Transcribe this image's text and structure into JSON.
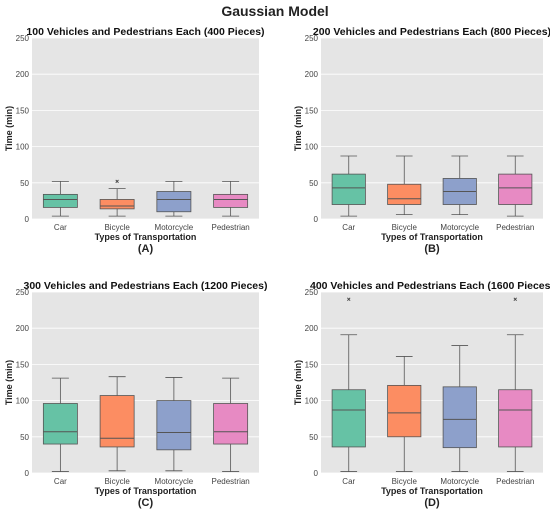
{
  "figure": {
    "title": "Gaussian Model"
  },
  "chart_data": [
    {
      "type": "box",
      "title": "100 Vehicles and Pedestrians Each (400 Pieces)",
      "xlabel": "Types of Transportation",
      "ylabel": "Time (min)",
      "sublabel": "(A)",
      "ylim": [
        0,
        250
      ],
      "yticks": [
        0,
        50,
        100,
        150,
        200,
        250
      ],
      "grid": true,
      "categories": [
        "Car",
        "Bicycle",
        "Motorcycle",
        "Pedestrian"
      ],
      "boxes": [
        {
          "whislo": 4,
          "q1": 16,
          "med": 27,
          "q3": 34,
          "whishi": 52,
          "fliers": []
        },
        {
          "whislo": 4,
          "q1": 14,
          "med": 18,
          "q3": 27,
          "whishi": 42,
          "fliers": [
            52
          ]
        },
        {
          "whislo": 4,
          "q1": 10,
          "med": 27,
          "q3": 38,
          "whishi": 52,
          "fliers": []
        },
        {
          "whislo": 4,
          "q1": 16,
          "med": 27,
          "q3": 34,
          "whishi": 52,
          "fliers": []
        }
      ]
    },
    {
      "type": "box",
      "title": "200 Vehicles and Pedestrians Each (800 Pieces)",
      "xlabel": "Types of Transportation",
      "ylabel": "Time (min)",
      "sublabel": "(B)",
      "ylim": [
        0,
        250
      ],
      "yticks": [
        0,
        50,
        100,
        150,
        200,
        250
      ],
      "grid": true,
      "categories": [
        "Car",
        "Bicycle",
        "Motorcycle",
        "Pedestrian"
      ],
      "boxes": [
        {
          "whislo": 4,
          "q1": 20,
          "med": 43,
          "q3": 62,
          "whishi": 87,
          "fliers": []
        },
        {
          "whislo": 6,
          "q1": 20,
          "med": 28,
          "q3": 48,
          "whishi": 87,
          "fliers": []
        },
        {
          "whislo": 6,
          "q1": 20,
          "med": 38,
          "q3": 56,
          "whishi": 87,
          "fliers": []
        },
        {
          "whislo": 4,
          "q1": 20,
          "med": 43,
          "q3": 62,
          "whishi": 87,
          "fliers": []
        }
      ]
    },
    {
      "type": "box",
      "title": "300 Vehicles and Pedestrians Each (1200 Pieces)",
      "xlabel": "Types of Transportation",
      "ylabel": "Time (min)",
      "sublabel": "(C)",
      "ylim": [
        0,
        250
      ],
      "yticks": [
        0,
        50,
        100,
        150,
        200,
        250
      ],
      "grid": true,
      "categories": [
        "Car",
        "Bicycle",
        "Motorcycle",
        "Pedestrian"
      ],
      "boxes": [
        {
          "whislo": 2,
          "q1": 40,
          "med": 57,
          "q3": 96,
          "whishi": 131,
          "fliers": []
        },
        {
          "whislo": 3,
          "q1": 36,
          "med": 48,
          "q3": 107,
          "whishi": 133,
          "fliers": []
        },
        {
          "whislo": 3,
          "q1": 32,
          "med": 56,
          "q3": 100,
          "whishi": 132,
          "fliers": []
        },
        {
          "whislo": 2,
          "q1": 40,
          "med": 57,
          "q3": 96,
          "whishi": 131,
          "fliers": []
        }
      ]
    },
    {
      "type": "box",
      "title": "400 Vehicles and Pedestrians Each (1600 Pieces)",
      "xlabel": "Types of Transportation",
      "ylabel": "Time (min)",
      "sublabel": "(D)",
      "ylim": [
        0,
        250
      ],
      "yticks": [
        0,
        50,
        100,
        150,
        200,
        250
      ],
      "grid": true,
      "categories": [
        "Car",
        "Bicycle",
        "Motorcycle",
        "Pedestrian"
      ],
      "boxes": [
        {
          "whislo": 2,
          "q1": 36,
          "med": 87,
          "q3": 115,
          "whishi": 191,
          "fliers": [
            240
          ]
        },
        {
          "whislo": 2,
          "q1": 50,
          "med": 83,
          "q3": 121,
          "whishi": 161,
          "fliers": []
        },
        {
          "whislo": 2,
          "q1": 35,
          "med": 74,
          "q3": 119,
          "whishi": 176,
          "fliers": []
        },
        {
          "whislo": 2,
          "q1": 36,
          "med": 87,
          "q3": 115,
          "whishi": 191,
          "fliers": [
            240
          ]
        }
      ]
    }
  ],
  "colors": {
    "background": "#e5e5e5",
    "grid": "#ffffff",
    "boxes": [
      "#66c2a5",
      "#fc8d62",
      "#8da0cb",
      "#e78ac3"
    ],
    "edge": "#555555"
  }
}
